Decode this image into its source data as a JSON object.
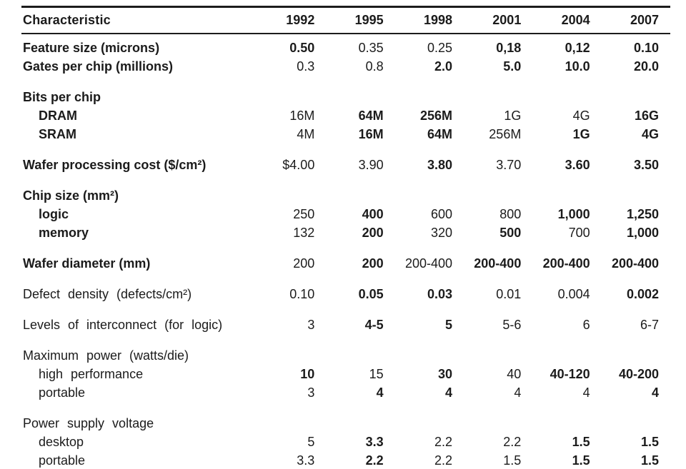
{
  "colors": {
    "text": "#1b1b1b",
    "rule": "#1c1c1c",
    "background": "#ffffff"
  },
  "document": {
    "header": {
      "characteristic_label": "Characteristic",
      "years": [
        "1992",
        "1995",
        "1998",
        "2001",
        "2004",
        "2007"
      ]
    },
    "rows": [
      {
        "label": "Feature size (microns)",
        "label_bold": true,
        "wide": false,
        "indent": 0,
        "spacer_before": false,
        "values": [
          "0.50",
          "0.35",
          "0.25",
          "0,18",
          "0,12",
          "0.10"
        ],
        "bold": [
          true,
          false,
          false,
          true,
          true,
          true
        ]
      },
      {
        "label": "Gates per chip (millions)",
        "label_bold": true,
        "wide": false,
        "indent": 0,
        "spacer_before": false,
        "values": [
          "0.3",
          "0.8",
          "2.0",
          "5.0",
          "10.0",
          "20.0"
        ],
        "bold": [
          false,
          false,
          true,
          true,
          true,
          true
        ]
      },
      {
        "label": "Bits per chip",
        "label_bold": true,
        "wide": false,
        "indent": 0,
        "spacer_before": true,
        "values": [
          "",
          "",
          "",
          "",
          "",
          ""
        ],
        "bold": [
          false,
          false,
          false,
          false,
          false,
          false
        ]
      },
      {
        "label": "DRAM",
        "label_bold": true,
        "wide": false,
        "indent": 1,
        "spacer_before": false,
        "values": [
          "16M",
          "64M",
          "256M",
          "1G",
          "4G",
          "16G"
        ],
        "bold": [
          false,
          true,
          true,
          false,
          false,
          true
        ]
      },
      {
        "label": "SRAM",
        "label_bold": true,
        "wide": false,
        "indent": 1,
        "spacer_before": false,
        "values": [
          "4M",
          "16M",
          "64M",
          "256M",
          "1G",
          "4G"
        ],
        "bold": [
          false,
          true,
          true,
          false,
          true,
          true
        ]
      },
      {
        "label": "Wafer processing cost ($/cm²)",
        "label_bold": true,
        "wide": false,
        "indent": 0,
        "spacer_before": true,
        "values": [
          "$4.00",
          "3.90",
          "3.80",
          "3.70",
          "3.60",
          "3.50"
        ],
        "bold": [
          false,
          false,
          true,
          false,
          true,
          true
        ]
      },
      {
        "label": "Chip size (mm²)",
        "label_bold": true,
        "wide": false,
        "indent": 0,
        "spacer_before": true,
        "values": [
          "",
          "",
          "",
          "",
          "",
          ""
        ],
        "bold": [
          false,
          false,
          false,
          false,
          false,
          false
        ]
      },
      {
        "label": "logic",
        "label_bold": true,
        "wide": false,
        "indent": 1,
        "spacer_before": false,
        "values": [
          "250",
          "400",
          "600",
          "800",
          "1,000",
          "1,250"
        ],
        "bold": [
          false,
          true,
          false,
          false,
          true,
          true
        ]
      },
      {
        "label": "memory",
        "label_bold": true,
        "wide": false,
        "indent": 1,
        "spacer_before": false,
        "values": [
          "132",
          "200",
          "320",
          "500",
          "700",
          "1,000"
        ],
        "bold": [
          false,
          true,
          false,
          true,
          false,
          true
        ]
      },
      {
        "label": "Wafer diameter (mm)",
        "label_bold": true,
        "wide": false,
        "indent": 0,
        "spacer_before": true,
        "values": [
          "200",
          "200",
          "200-400",
          "200-400",
          "200-400",
          "200-400"
        ],
        "bold": [
          false,
          true,
          false,
          true,
          true,
          true
        ]
      },
      {
        "label": "Defect  density  (defects/cm²)",
        "label_bold": false,
        "wide": true,
        "indent": 0,
        "spacer_before": true,
        "values": [
          "0.10",
          "0.05",
          "0.03",
          "0.01",
          "0.004",
          "0.002"
        ],
        "bold": [
          false,
          true,
          true,
          false,
          false,
          true
        ]
      },
      {
        "label": "Levels of interconnect (for logic)",
        "label_bold": false,
        "wide": true,
        "indent": 0,
        "spacer_before": true,
        "values": [
          "3",
          "4-5",
          "5",
          "5-6",
          "6",
          "6-7"
        ],
        "bold": [
          false,
          true,
          true,
          false,
          false,
          false
        ]
      },
      {
        "label": "Maximum power (watts/die)",
        "label_bold": false,
        "wide": true,
        "indent": 0,
        "spacer_before": true,
        "values": [
          "",
          "",
          "",
          "",
          "",
          ""
        ],
        "bold": [
          false,
          false,
          false,
          false,
          false,
          false
        ]
      },
      {
        "label": "high performance",
        "label_bold": false,
        "wide": true,
        "indent": 1,
        "spacer_before": false,
        "values": [
          "10",
          "15",
          "30",
          "40",
          "40-120",
          "40-200"
        ],
        "bold": [
          true,
          false,
          true,
          false,
          true,
          true
        ]
      },
      {
        "label": "portable",
        "label_bold": false,
        "wide": false,
        "indent": 1,
        "spacer_before": false,
        "values": [
          "3",
          "4",
          "4",
          "4",
          "4",
          "4"
        ],
        "bold": [
          false,
          true,
          true,
          false,
          false,
          true
        ]
      },
      {
        "label": "Power supply voltage",
        "label_bold": false,
        "wide": true,
        "indent": 0,
        "spacer_before": true,
        "values": [
          "",
          "",
          "",
          "",
          "",
          ""
        ],
        "bold": [
          false,
          false,
          false,
          false,
          false,
          false
        ]
      },
      {
        "label": "desktop",
        "label_bold": false,
        "wide": false,
        "indent": 1,
        "spacer_before": false,
        "values": [
          "5",
          "3.3",
          "2.2",
          "2.2",
          "1.5",
          "1.5"
        ],
        "bold": [
          false,
          true,
          false,
          false,
          true,
          true
        ]
      },
      {
        "label": "portable",
        "label_bold": false,
        "wide": false,
        "indent": 1,
        "spacer_before": false,
        "values": [
          "3.3",
          "2.2",
          "2.2",
          "1.5",
          "1.5",
          "1.5"
        ],
        "bold": [
          false,
          true,
          false,
          false,
          true,
          true
        ]
      }
    ]
  }
}
